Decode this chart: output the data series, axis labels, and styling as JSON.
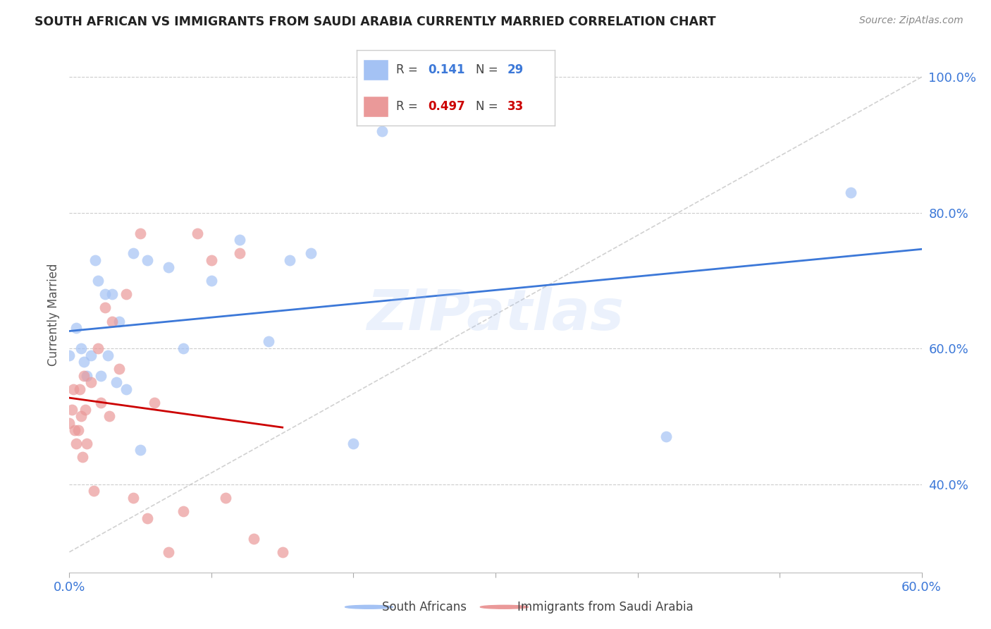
{
  "title": "SOUTH AFRICAN VS IMMIGRANTS FROM SAUDI ARABIA CURRENTLY MARRIED CORRELATION CHART",
  "source": "Source: ZipAtlas.com",
  "ylabel": "Currently Married",
  "xlim": [
    0.0,
    0.6
  ],
  "ylim": [
    0.27,
    1.03
  ],
  "yticks": [
    0.4,
    0.6,
    0.8,
    1.0
  ],
  "ytick_labels": [
    "40.0%",
    "60.0%",
    "80.0%",
    "100.0%"
  ],
  "xticks": [
    0.0,
    0.1,
    0.2,
    0.3,
    0.4,
    0.5,
    0.6
  ],
  "xtick_labels": [
    "0.0%",
    "",
    "",
    "",
    "",
    "",
    "60.0%"
  ],
  "blue_color": "#a4c2f4",
  "pink_color": "#ea9999",
  "blue_line_color": "#3c78d8",
  "pink_line_color": "#cc0000",
  "diag_line_color": "#cccccc",
  "watermark_text": "ZIPatlas",
  "watermark_color": "#a4c2f4",
  "sa_R": "0.141",
  "sa_N": "29",
  "im_R": "0.497",
  "im_N": "33",
  "south_africans_x": [
    0.0,
    0.005,
    0.008,
    0.01,
    0.012,
    0.015,
    0.018,
    0.02,
    0.022,
    0.025,
    0.027,
    0.03,
    0.033,
    0.035,
    0.04,
    0.045,
    0.05,
    0.055,
    0.07,
    0.08,
    0.1,
    0.12,
    0.14,
    0.155,
    0.17,
    0.2,
    0.22,
    0.42,
    0.55
  ],
  "south_africans_y": [
    0.59,
    0.63,
    0.6,
    0.58,
    0.56,
    0.59,
    0.73,
    0.7,
    0.56,
    0.68,
    0.59,
    0.68,
    0.55,
    0.64,
    0.54,
    0.74,
    0.45,
    0.73,
    0.72,
    0.6,
    0.7,
    0.76,
    0.61,
    0.73,
    0.74,
    0.46,
    0.92,
    0.47,
    0.83
  ],
  "immigrants_x": [
    0.0,
    0.002,
    0.003,
    0.004,
    0.005,
    0.006,
    0.007,
    0.008,
    0.009,
    0.01,
    0.011,
    0.012,
    0.015,
    0.017,
    0.02,
    0.022,
    0.025,
    0.028,
    0.03,
    0.035,
    0.04,
    0.045,
    0.05,
    0.055,
    0.06,
    0.07,
    0.08,
    0.09,
    0.1,
    0.11,
    0.12,
    0.13,
    0.15
  ],
  "immigrants_y": [
    0.49,
    0.51,
    0.54,
    0.48,
    0.46,
    0.48,
    0.54,
    0.5,
    0.44,
    0.56,
    0.51,
    0.46,
    0.55,
    0.39,
    0.6,
    0.52,
    0.66,
    0.5,
    0.64,
    0.57,
    0.68,
    0.38,
    0.77,
    0.35,
    0.52,
    0.3,
    0.36,
    0.77,
    0.73,
    0.38,
    0.74,
    0.32,
    0.3
  ]
}
